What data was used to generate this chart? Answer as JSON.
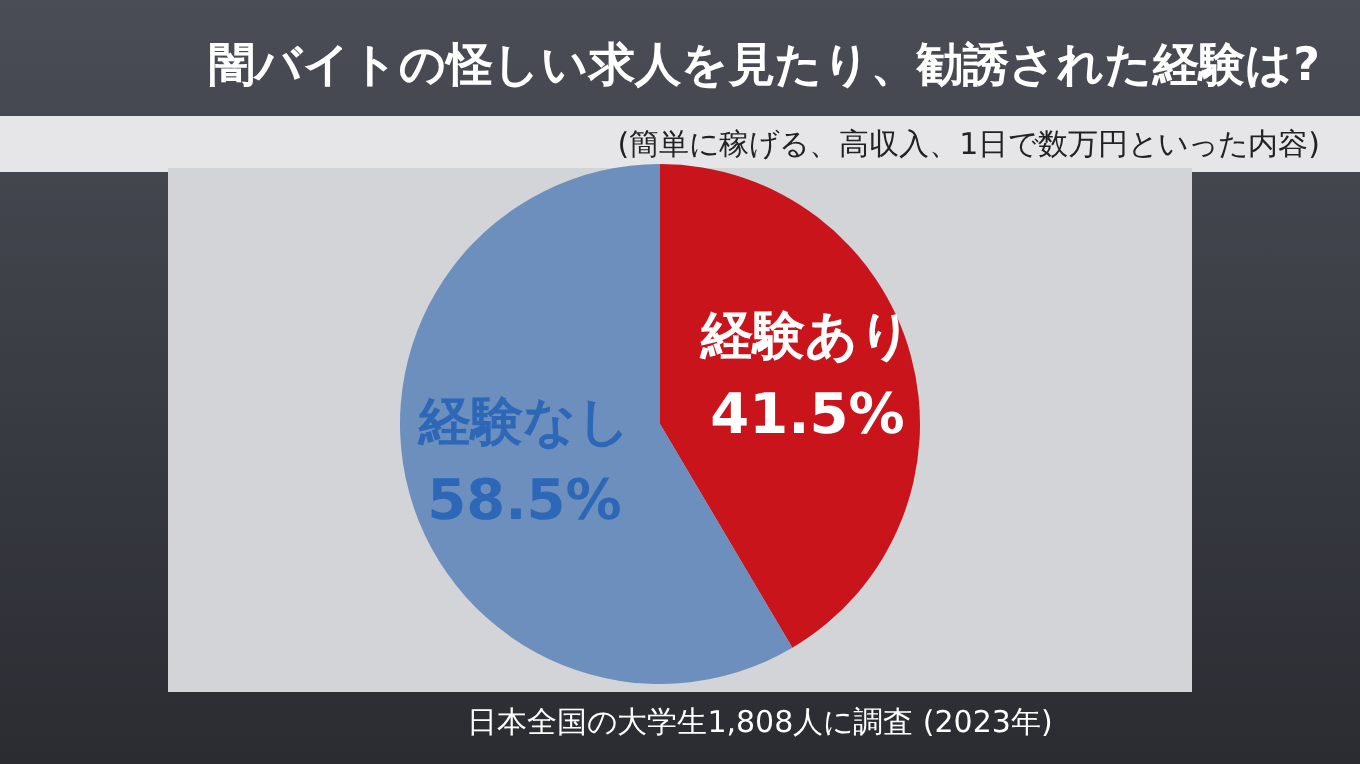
{
  "chart_data": {
    "type": "pie",
    "title": "闇バイトの怪しい求人を見たり、勧誘された経験は?",
    "subtitle": "(簡単に稼げる、高収入、1日で数万円といった内容)",
    "categories": [
      "経験あり",
      "経験なし"
    ],
    "values": [
      41.5,
      58.5
    ],
    "colors": [
      "#c8141a",
      "#6d8fbd"
    ],
    "value_labels": [
      "41.5%",
      "58.5%"
    ],
    "annotations": [
      "日本全国の大学生1,808人に調査 (2023年)"
    ]
  }
}
